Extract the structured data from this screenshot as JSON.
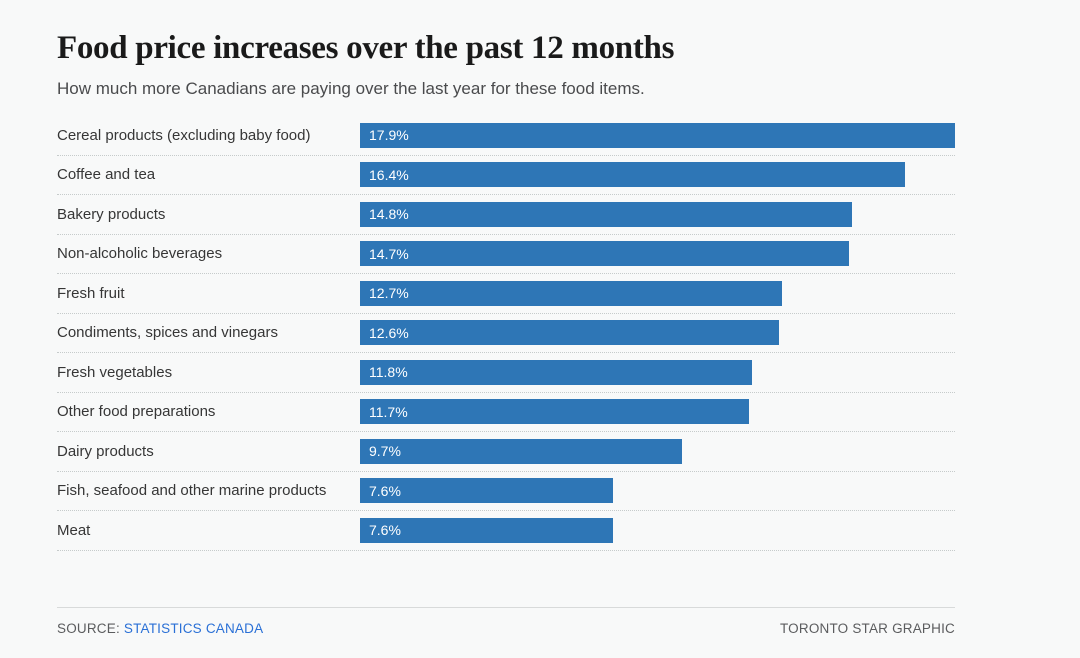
{
  "header": {
    "title": "Food price increases over the past 12 months",
    "subtitle": "How much more Canadians are paying over the last year for these food items."
  },
  "chart_data": {
    "type": "bar",
    "orientation": "horizontal",
    "title": "Food price increases over the past 12 months",
    "subtitle": "How much more Canadians are paying over the last year for these food items.",
    "categories": [
      "Cereal products (excluding baby food)",
      "Coffee and tea",
      "Bakery products",
      "Non-alcoholic beverages",
      "Fresh fruit",
      "Condiments, spices and vinegars",
      "Fresh vegetables",
      "Other food preparations",
      "Dairy products",
      "Fish, seafood and other marine products",
      "Meat"
    ],
    "values": [
      17.9,
      16.4,
      14.8,
      14.7,
      12.7,
      12.6,
      11.8,
      11.7,
      9.7,
      7.6,
      7.6
    ],
    "value_labels": [
      "17.9%",
      "16.4%",
      "14.8%",
      "14.7%",
      "12.7%",
      "12.6%",
      "11.8%",
      "11.7%",
      "9.7%",
      "7.6%",
      "7.6%"
    ],
    "value_suffix": "%",
    "xlim": [
      0,
      17.9
    ],
    "grid": false,
    "legend": false,
    "bar_color": "#2e76b6",
    "value_label_color": "#ffffff",
    "value_label_position": "inside-left"
  },
  "footer": {
    "source_prefix": "SOURCE:",
    "source_link": "STATISTICS CANADA",
    "credit": "TORONTO STAR GRAPHIC",
    "link_color": "#2a70d6"
  },
  "colors": {
    "background": "#f8f9f9",
    "bar": "#2e76b6",
    "link": "#2a70d6",
    "separator": "#c6cbcb"
  }
}
